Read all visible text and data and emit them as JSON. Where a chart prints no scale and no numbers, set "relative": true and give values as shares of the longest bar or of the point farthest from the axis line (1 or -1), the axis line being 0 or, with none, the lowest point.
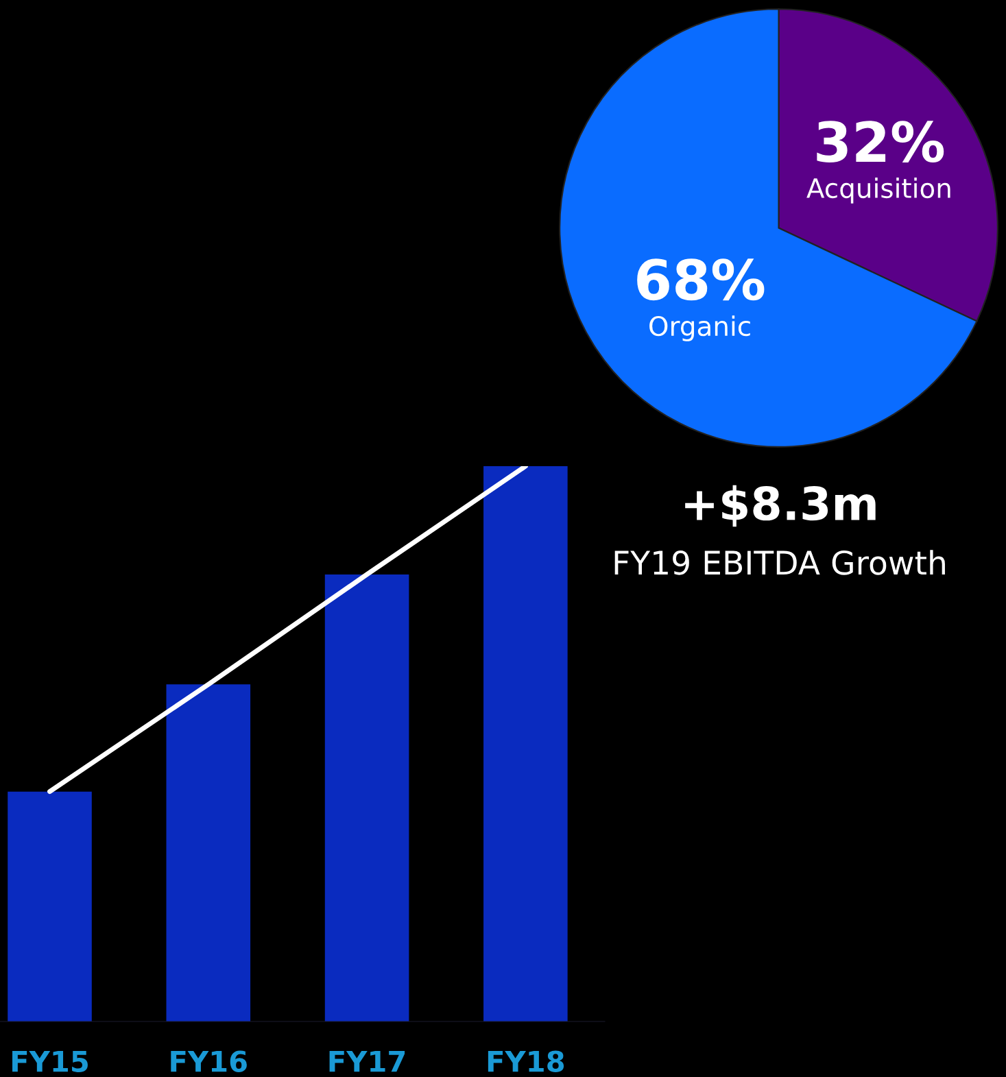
{
  "chart_data": [
    {
      "type": "bar",
      "relative": true,
      "categories": [
        "FY15",
        "FY16",
        "FY17",
        "FY18"
      ],
      "series": [
        {
          "type": "bar",
          "color": "#0a2bbf",
          "values": [
            0.414,
            0.607,
            0.805,
            1.0
          ]
        },
        {
          "type": "line",
          "color": "#ffffff",
          "values": [
            0.414,
            0.607,
            0.805,
            1.0
          ]
        }
      ],
      "grid": false,
      "legend": false,
      "marker": "none",
      "line_style": "solid"
    },
    {
      "type": "pie",
      "title": "+$8.3m",
      "subtitle": "FY19 EBITDA Growth",
      "categories": [
        "Acquisition",
        "Organic"
      ],
      "values": [
        32,
        68
      ],
      "colors": [
        "#5a0088",
        "#0a6cff"
      ],
      "value_labels": [
        "32%",
        "68%"
      ]
    }
  ]
}
